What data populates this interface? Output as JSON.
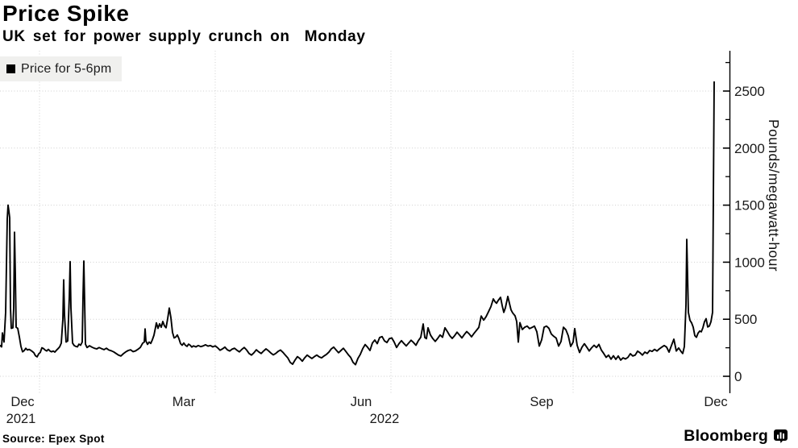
{
  "header": {
    "title": "Price Spike",
    "subtitle": "UK set for power supply crunch on  Monday"
  },
  "legend": {
    "label": "Price for 5-6pm",
    "swatch_color": "#000000"
  },
  "footer": {
    "source": "Source: Epex Spot",
    "brand": "Bloomberg"
  },
  "colors": {
    "line": "#000000",
    "grid": "#d0d0d0",
    "axis": "#000000",
    "legend_bg": "#f0f0ee",
    "background": "#ffffff"
  },
  "chart_data": {
    "type": "line",
    "title": "Price Spike",
    "subtitle": "UK set for power supply crunch on  Monday",
    "series_name": "Price for 5-6pm",
    "grid": "dotted",
    "legend_position": "top-left",
    "y_axis": {
      "label": "Pounds/megawatt-hour",
      "side": "right",
      "major_ticks": [
        0,
        500,
        1000,
        1500,
        2000,
        2500
      ],
      "minor_tick_step": 250,
      "range": [
        0,
        2817
      ]
    },
    "x_axis": {
      "start": "late Nov 2021",
      "end": "Dec 2022",
      "tick_labels": [
        "Dec",
        "Mar",
        "Jun",
        "Sep",
        "Dec"
      ],
      "year_labels": [
        "2021",
        "2022"
      ]
    },
    "x_unit": "plot pixels 0-905 spanning late Nov 2021 to early Dec 2022",
    "y_unit": "pounds per megawatt-hour",
    "notable_values": {
      "dec_2021_spike": 1500,
      "jan_2022_spikes": [
        845,
        1005,
        1010
      ],
      "summer_peak": 700,
      "nov_2022_spike": 1200,
      "final_dec_2022_spike": 2580
    },
    "points": [
      [
        0,
        270
      ],
      [
        2,
        258
      ],
      [
        3,
        380
      ],
      [
        5,
        300
      ],
      [
        7,
        560
      ],
      [
        9,
        1380
      ],
      [
        10,
        1500
      ],
      [
        11,
        1450
      ],
      [
        12,
        1390
      ],
      [
        13,
        600
      ],
      [
        14,
        420
      ],
      [
        16,
        425
      ],
      [
        17,
        600
      ],
      [
        18,
        1263
      ],
      [
        19,
        900
      ],
      [
        20,
        430
      ],
      [
        22,
        420
      ],
      [
        24,
        346
      ],
      [
        26,
        261
      ],
      [
        28,
        215
      ],
      [
        30,
        225
      ],
      [
        32,
        245
      ],
      [
        34,
        230
      ],
      [
        36,
        236
      ],
      [
        38,
        228
      ],
      [
        40,
        218
      ],
      [
        42,
        206
      ],
      [
        44,
        180
      ],
      [
        46,
        170
      ],
      [
        48,
        196
      ],
      [
        50,
        210
      ],
      [
        52,
        250
      ],
      [
        54,
        243
      ],
      [
        56,
        230
      ],
      [
        58,
        222
      ],
      [
        60,
        236
      ],
      [
        62,
        222
      ],
      [
        64,
        215
      ],
      [
        66,
        222
      ],
      [
        68,
        212
      ],
      [
        70,
        228
      ],
      [
        72,
        242
      ],
      [
        74,
        258
      ],
      [
        76,
        290
      ],
      [
        78,
        500
      ],
      [
        79,
        845
      ],
      [
        80,
        540
      ],
      [
        82,
        300
      ],
      [
        84,
        310
      ],
      [
        86,
        700
      ],
      [
        87,
        1005
      ],
      [
        88,
        600
      ],
      [
        90,
        292
      ],
      [
        92,
        270
      ],
      [
        94,
        262
      ],
      [
        96,
        258
      ],
      [
        98,
        282
      ],
      [
        100,
        272
      ],
      [
        102,
        300
      ],
      [
        103,
        700
      ],
      [
        104,
        1010
      ],
      [
        105,
        650
      ],
      [
        106,
        282
      ],
      [
        108,
        252
      ],
      [
        111,
        268
      ],
      [
        114,
        256
      ],
      [
        117,
        246
      ],
      [
        120,
        240
      ],
      [
        123,
        252
      ],
      [
        126,
        242
      ],
      [
        129,
        234
      ],
      [
        132,
        246
      ],
      [
        135,
        230
      ],
      [
        138,
        224
      ],
      [
        141,
        214
      ],
      [
        144,
        200
      ],
      [
        147,
        186
      ],
      [
        150,
        178
      ],
      [
        153,
        198
      ],
      [
        156,
        214
      ],
      [
        159,
        226
      ],
      [
        162,
        232
      ],
      [
        165,
        216
      ],
      [
        168,
        222
      ],
      [
        171,
        236
      ],
      [
        174,
        252
      ],
      [
        177,
        290
      ],
      [
        179,
        300
      ],
      [
        180,
        415
      ],
      [
        181,
        310
      ],
      [
        183,
        280
      ],
      [
        185,
        300
      ],
      [
        187,
        288
      ],
      [
        189,
        320
      ],
      [
        191,
        360
      ],
      [
        193,
        430
      ],
      [
        194,
        468
      ],
      [
        196,
        420
      ],
      [
        198,
        460
      ],
      [
        200,
        430
      ],
      [
        202,
        480
      ],
      [
        204,
        442
      ],
      [
        206,
        425
      ],
      [
        208,
        505
      ],
      [
        210,
        598
      ],
      [
        212,
        515
      ],
      [
        214,
        385
      ],
      [
        216,
        336
      ],
      [
        218,
        344
      ],
      [
        220,
        362
      ],
      [
        222,
        330
      ],
      [
        224,
        286
      ],
      [
        226,
        272
      ],
      [
        228,
        292
      ],
      [
        230,
        272
      ],
      [
        232,
        262
      ],
      [
        234,
        282
      ],
      [
        236,
        272
      ],
      [
        238,
        256
      ],
      [
        240,
        266
      ],
      [
        243,
        258
      ],
      [
        246,
        270
      ],
      [
        249,
        260
      ],
      [
        252,
        266
      ],
      [
        255,
        276
      ],
      [
        258,
        264
      ],
      [
        261,
        270
      ],
      [
        264,
        258
      ],
      [
        267,
        266
      ],
      [
        270,
        250
      ],
      [
        273,
        228
      ],
      [
        276,
        240
      ],
      [
        279,
        256
      ],
      [
        282,
        232
      ],
      [
        285,
        222
      ],
      [
        288,
        238
      ],
      [
        291,
        246
      ],
      [
        294,
        228
      ],
      [
        297,
        214
      ],
      [
        300,
        236
      ],
      [
        303,
        252
      ],
      [
        306,
        230
      ],
      [
        309,
        200
      ],
      [
        312,
        186
      ],
      [
        315,
        206
      ],
      [
        318,
        232
      ],
      [
        321,
        214
      ],
      [
        324,
        200
      ],
      [
        327,
        222
      ],
      [
        330,
        240
      ],
      [
        333,
        224
      ],
      [
        336,
        204
      ],
      [
        339,
        188
      ],
      [
        342,
        200
      ],
      [
        345,
        218
      ],
      [
        348,
        230
      ],
      [
        351,
        210
      ],
      [
        354,
        186
      ],
      [
        357,
        162
      ],
      [
        360,
        122
      ],
      [
        363,
        106
      ],
      [
        366,
        142
      ],
      [
        369,
        172
      ],
      [
        372,
        156
      ],
      [
        375,
        132
      ],
      [
        378,
        162
      ],
      [
        381,
        186
      ],
      [
        384,
        170
      ],
      [
        387,
        156
      ],
      [
        390,
        172
      ],
      [
        393,
        186
      ],
      [
        396,
        170
      ],
      [
        399,
        162
      ],
      [
        402,
        178
      ],
      [
        405,
        192
      ],
      [
        408,
        212
      ],
      [
        411,
        240
      ],
      [
        414,
        256
      ],
      [
        417,
        230
      ],
      [
        420,
        206
      ],
      [
        423,
        226
      ],
      [
        426,
        246
      ],
      [
        429,
        218
      ],
      [
        432,
        190
      ],
      [
        435,
        166
      ],
      [
        438,
        122
      ],
      [
        441,
        102
      ],
      [
        444,
        156
      ],
      [
        447,
        192
      ],
      [
        450,
        242
      ],
      [
        453,
        278
      ],
      [
        456,
        255
      ],
      [
        459,
        226
      ],
      [
        462,
        292
      ],
      [
        465,
        318
      ],
      [
        468,
        286
      ],
      [
        471,
        340
      ],
      [
        474,
        348
      ],
      [
        477,
        310
      ],
      [
        480,
        296
      ],
      [
        483,
        330
      ],
      [
        486,
        336
      ],
      [
        489,
        300
      ],
      [
        492,
        252
      ],
      [
        495,
        286
      ],
      [
        498,
        312
      ],
      [
        501,
        288
      ],
      [
        504,
        266
      ],
      [
        507,
        292
      ],
      [
        510,
        316
      ],
      [
        513,
        296
      ],
      [
        516,
        272
      ],
      [
        519,
        312
      ],
      [
        522,
        342
      ],
      [
        525,
        458
      ],
      [
        527,
        340
      ],
      [
        529,
        330
      ],
      [
        531,
        425
      ],
      [
        534,
        362
      ],
      [
        537,
        330
      ],
      [
        540,
        306
      ],
      [
        543,
        332
      ],
      [
        546,
        362
      ],
      [
        549,
        342
      ],
      [
        552,
        425
      ],
      [
        555,
        392
      ],
      [
        558,
        356
      ],
      [
        561,
        332
      ],
      [
        564,
        356
      ],
      [
        567,
        386
      ],
      [
        570,
        362
      ],
      [
        573,
        336
      ],
      [
        576,
        366
      ],
      [
        579,
        392
      ],
      [
        582,
        372
      ],
      [
        585,
        346
      ],
      [
        588,
        376
      ],
      [
        591,
        402
      ],
      [
        594,
        428
      ],
      [
        597,
        528
      ],
      [
        600,
        492
      ],
      [
        603,
        522
      ],
      [
        606,
        566
      ],
      [
        609,
        610
      ],
      [
        612,
        678
      ],
      [
        614,
        655
      ],
      [
        616,
        640
      ],
      [
        618,
        664
      ],
      [
        621,
        692
      ],
      [
        623,
        620
      ],
      [
        625,
        560
      ],
      [
        627,
        600
      ],
      [
        630,
        700
      ],
      [
        632,
        640
      ],
      [
        634,
        582
      ],
      [
        636,
        556
      ],
      [
        639,
        530
      ],
      [
        641,
        480
      ],
      [
        643,
        300
      ],
      [
        645,
        470
      ],
      [
        648,
        410
      ],
      [
        651,
        430
      ],
      [
        654,
        440
      ],
      [
        657,
        418
      ],
      [
        660,
        428
      ],
      [
        663,
        440
      ],
      [
        666,
        390
      ],
      [
        669,
        265
      ],
      [
        672,
        320
      ],
      [
        675,
        430
      ],
      [
        678,
        440
      ],
      [
        681,
        420
      ],
      [
        684,
        370
      ],
      [
        687,
        350
      ],
      [
        690,
        335
      ],
      [
        693,
        265
      ],
      [
        696,
        305
      ],
      [
        699,
        430
      ],
      [
        702,
        408
      ],
      [
        705,
        355
      ],
      [
        708,
        262
      ],
      [
        711,
        300
      ],
      [
        713,
        418
      ],
      [
        716,
        272
      ],
      [
        719,
        208
      ],
      [
        722,
        255
      ],
      [
        725,
        285
      ],
      [
        728,
        255
      ],
      [
        731,
        222
      ],
      [
        734,
        250
      ],
      [
        737,
        272
      ],
      [
        740,
        252
      ],
      [
        743,
        280
      ],
      [
        746,
        230
      ],
      [
        749,
        200
      ],
      [
        752,
        166
      ],
      [
        755,
        186
      ],
      [
        758,
        150
      ],
      [
        761,
        180
      ],
      [
        764,
        148
      ],
      [
        767,
        178
      ],
      [
        770,
        142
      ],
      [
        773,
        162
      ],
      [
        776,
        152
      ],
      [
        779,
        166
      ],
      [
        782,
        198
      ],
      [
        785,
        178
      ],
      [
        788,
        186
      ],
      [
        791,
        220
      ],
      [
        794,
        206
      ],
      [
        797,
        186
      ],
      [
        800,
        212
      ],
      [
        803,
        200
      ],
      [
        806,
        226
      ],
      [
        809,
        218
      ],
      [
        812,
        236
      ],
      [
        815,
        222
      ],
      [
        818,
        240
      ],
      [
        821,
        256
      ],
      [
        824,
        270
      ],
      [
        827,
        256
      ],
      [
        830,
        212
      ],
      [
        833,
        270
      ],
      [
        836,
        325
      ],
      [
        839,
        222
      ],
      [
        842,
        248
      ],
      [
        845,
        216
      ],
      [
        847,
        200
      ],
      [
        849,
        260
      ],
      [
        851,
        620
      ],
      [
        852,
        1200
      ],
      [
        854,
        560
      ],
      [
        856,
        490
      ],
      [
        858,
        468
      ],
      [
        860,
        430
      ],
      [
        862,
        356
      ],
      [
        864,
        342
      ],
      [
        866,
        378
      ],
      [
        868,
        396
      ],
      [
        870,
        390
      ],
      [
        872,
        425
      ],
      [
        874,
        478
      ],
      [
        876,
        505
      ],
      [
        878,
        432
      ],
      [
        880,
        440
      ],
      [
        882,
        478
      ],
      [
        884,
        560
      ],
      [
        886,
        2580
      ]
    ]
  }
}
